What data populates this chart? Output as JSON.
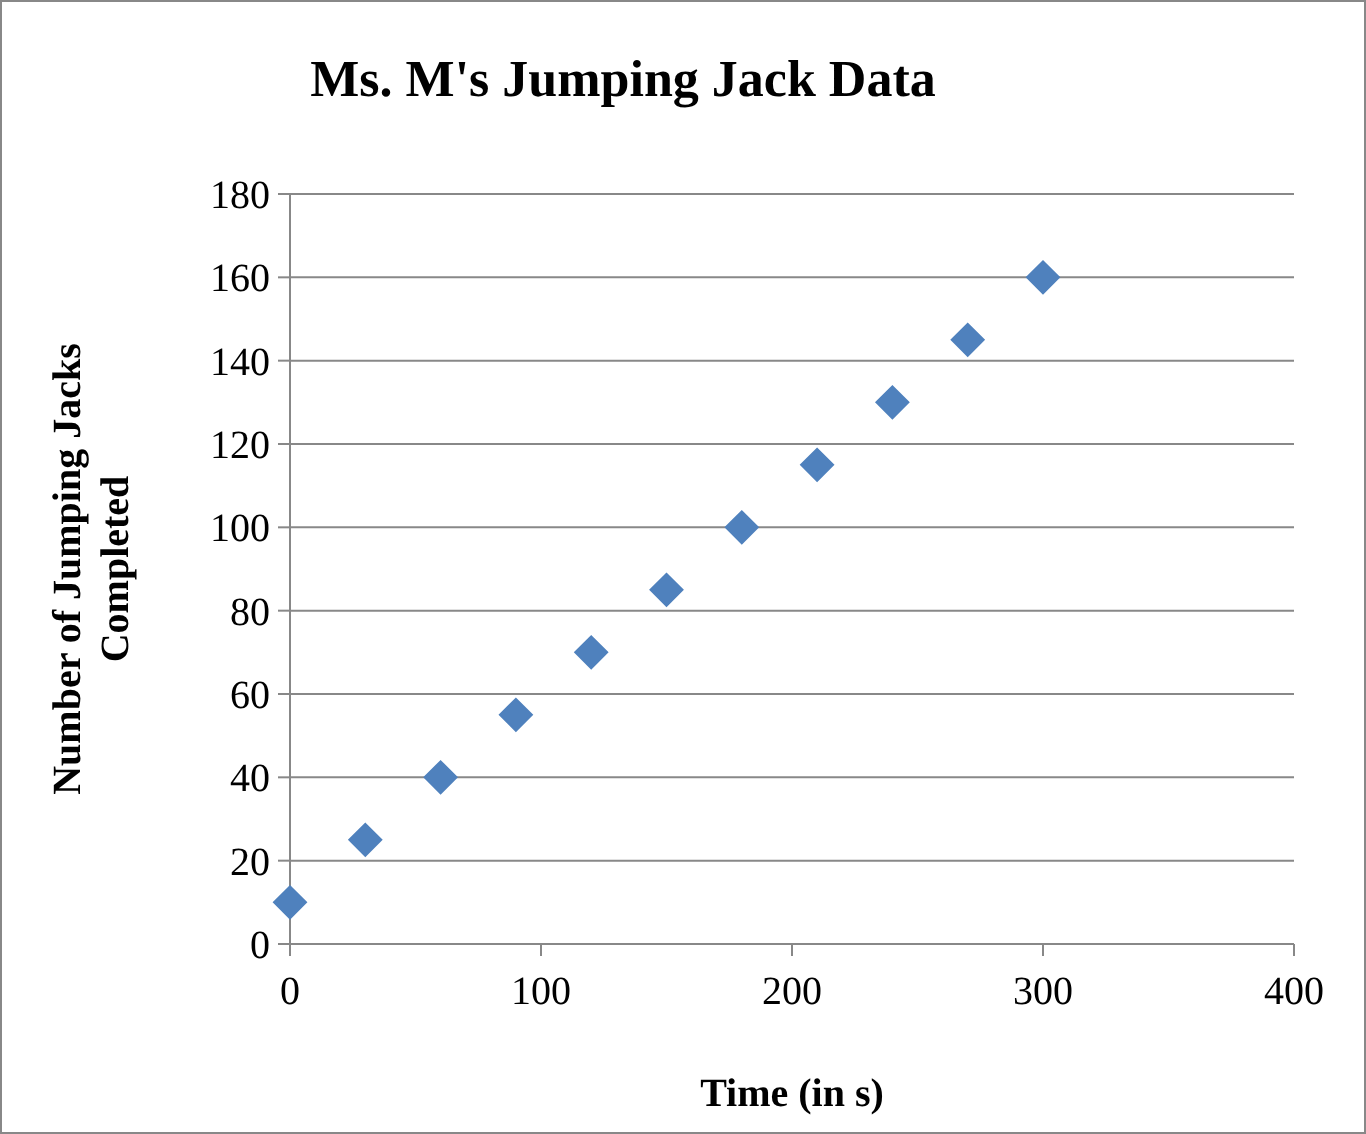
{
  "chart_data": {
    "type": "scatter",
    "title": "Ms. M's Jumping Jack Data",
    "xlabel": "Time (in s)",
    "ylabel": "Number of Jumping Jacks Completed",
    "x": [
      0,
      30,
      60,
      90,
      120,
      150,
      180,
      210,
      240,
      270,
      300
    ],
    "series": [
      {
        "color": "#4f81bd",
        "values": [
          10,
          25,
          40,
          55,
          70,
          85,
          100,
          115,
          130,
          145,
          160
        ]
      }
    ],
    "xlim": [
      0,
      400
    ],
    "xticks": [
      0,
      100,
      200,
      300,
      400
    ],
    "ylim": [
      0,
      180
    ],
    "yticks": [
      0,
      20,
      40,
      60,
      80,
      100,
      120,
      140,
      160,
      180
    ],
    "grid": "y",
    "marker": "diamond"
  }
}
